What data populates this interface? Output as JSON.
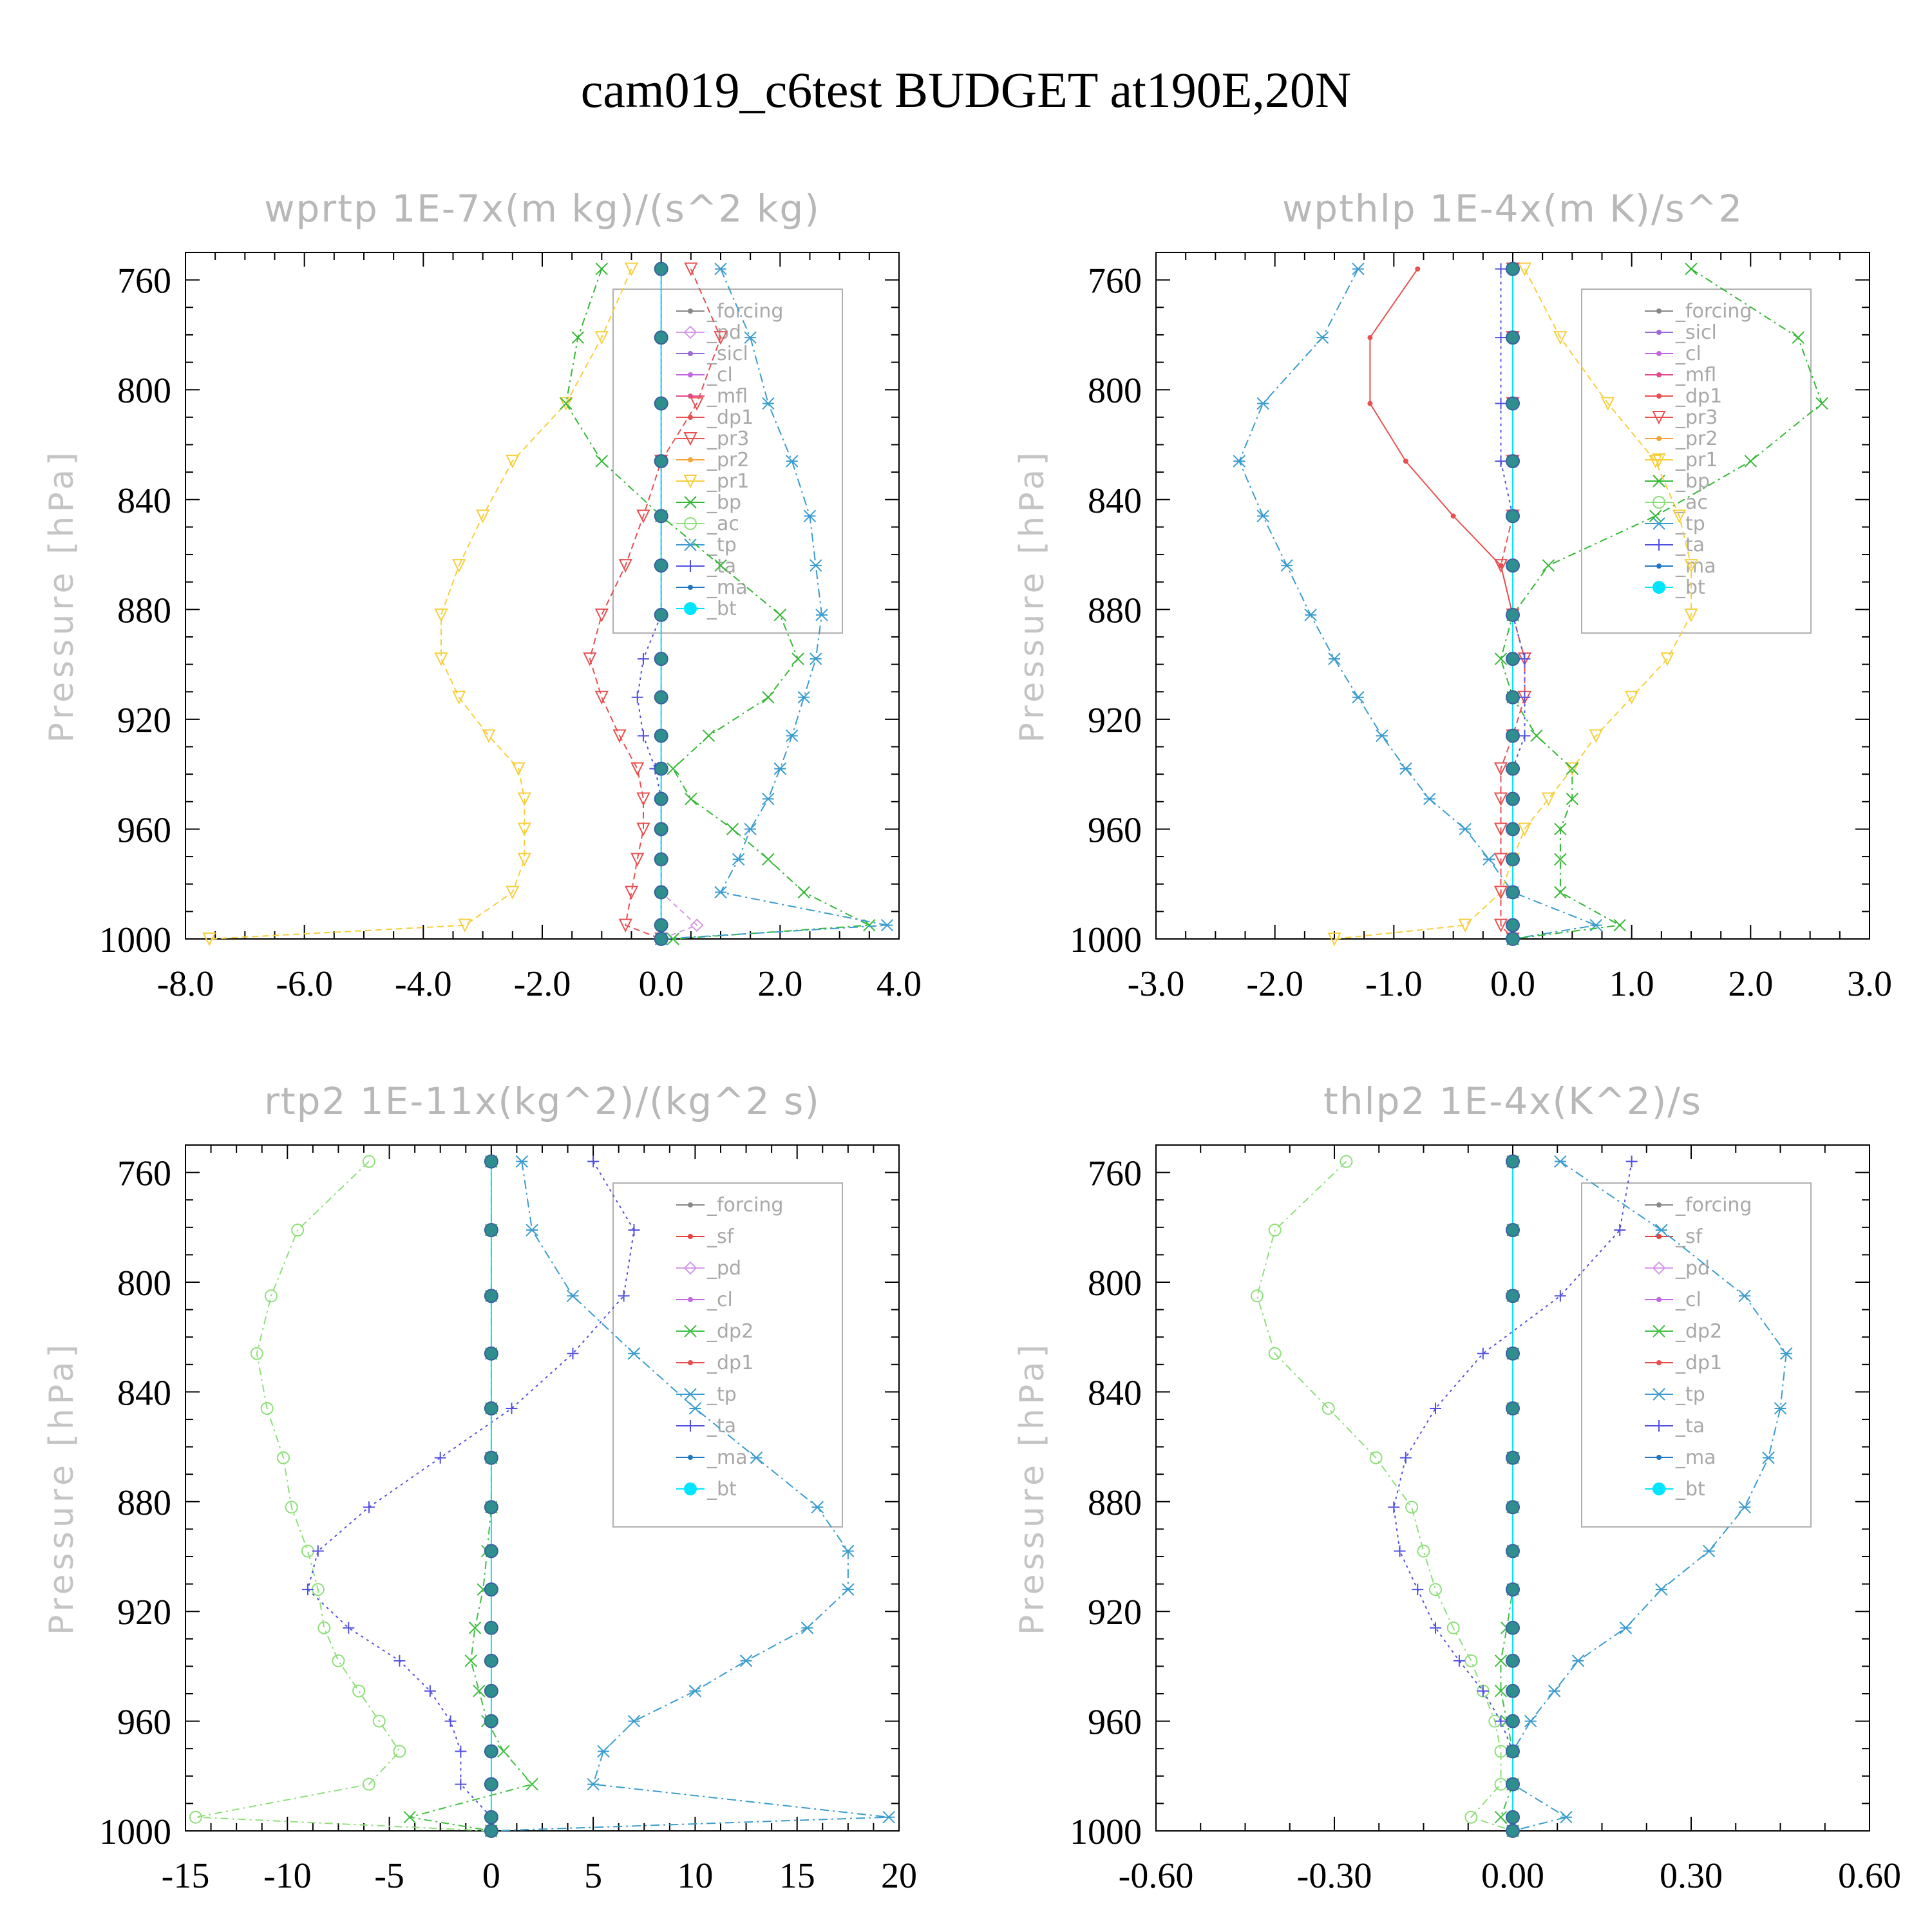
{
  "page_title": "cam019_c6test  BUDGET at190E,20N",
  "ylabel": "Pressure [hPa]",
  "colors": {
    "forcing": "#888888",
    "sf": "#e8403c",
    "pd": "#d59ae8",
    "sicl": "#9a6bd6",
    "cl": "#c068e0",
    "mfl": "#e04a8c",
    "dp1": "#e85050",
    "dp2": "#40c040",
    "pr3": "#e85050",
    "pr2": "#f5a53c",
    "pr1": "#f7cf3c",
    "bp": "#34b834",
    "ac": "#8ee07a",
    "tp": "#3a9ccf",
    "ta": "#5050e0",
    "ma": "#2077c0",
    "bt": "#00e5ff"
  },
  "chart_data": [
    {
      "type": "line",
      "title": "wprtp  1E-7x(m kg)/(s^2 kg)",
      "ylabel": "Pressure [hPa]",
      "xlim": [
        -8.0,
        4.0
      ],
      "ylim": [
        1000,
        750
      ],
      "y_reversed": true,
      "xticks": [
        "-8.0",
        "-6.0",
        "-4.0",
        "-2.0",
        "0.0",
        "2.0",
        "4.0"
      ],
      "xtick_values": [
        -8,
        -6,
        -4,
        -2,
        0,
        2,
        4
      ],
      "yticks": [
        "760",
        "800",
        "840",
        "880",
        "920",
        "960",
        "1000"
      ],
      "ytick_values": [
        760,
        800,
        840,
        880,
        920,
        960,
        1000
      ],
      "legend_position": "upper-right",
      "legend": [
        "_forcing",
        "_pd",
        "_sicl",
        "_cl",
        "_mfl",
        "_dp1",
        "_pr3",
        "_pr2",
        "_pr1",
        "_bp",
        "_ac",
        "_tp",
        "_ta",
        "_ma",
        "_bt"
      ],
      "levels": [
        756,
        781,
        805,
        826,
        846,
        864,
        882,
        898,
        912,
        926,
        938,
        949,
        960,
        971,
        983,
        995,
        1000
      ],
      "series": [
        {
          "name": "_pr1",
          "key": "pr1",
          "values": [
            -0.5,
            -1.0,
            -1.6,
            -2.5,
            -3.0,
            -3.4,
            -3.7,
            -3.7,
            -3.4,
            -2.9,
            -2.4,
            -2.3,
            -2.3,
            -2.3,
            -2.5,
            -3.3,
            -7.6
          ]
        },
        {
          "name": "_pr3",
          "key": "pr3",
          "values": [
            0.5,
            1.0,
            0.6,
            0.0,
            -0.3,
            -0.6,
            -1.0,
            -1.2,
            -1.0,
            -0.7,
            -0.4,
            -0.3,
            -0.3,
            -0.4,
            -0.5,
            -0.6,
            0.0
          ]
        },
        {
          "name": "_bp",
          "key": "bp",
          "values": [
            -1.0,
            -1.4,
            -1.6,
            -1.0,
            0.0,
            1.0,
            2.0,
            2.3,
            1.8,
            0.8,
            0.2,
            0.5,
            1.2,
            1.8,
            2.4,
            3.5,
            0.2
          ]
        },
        {
          "name": "_tp",
          "key": "tp",
          "values": [
            1.0,
            1.5,
            1.8,
            2.2,
            2.5,
            2.6,
            2.7,
            2.6,
            2.4,
            2.2,
            2.0,
            1.8,
            1.5,
            1.3,
            1.0,
            3.8,
            0.0
          ]
        },
        {
          "name": "_ta",
          "key": "ta",
          "values": [
            0.0,
            0.0,
            0.0,
            0.0,
            0.0,
            0.0,
            0.0,
            -0.3,
            -0.4,
            -0.3,
            -0.1,
            0.0,
            0.0,
            0.0,
            0.0,
            0.0,
            0.0
          ]
        },
        {
          "name": "_pd",
          "key": "pd",
          "values": [
            0.0,
            0.0,
            0.0,
            0.0,
            0.0,
            0.0,
            0.0,
            0.0,
            0.0,
            0.0,
            0.0,
            0.0,
            0.0,
            0.0,
            0.0,
            0.6,
            0.0
          ]
        },
        {
          "name": "_bt",
          "key": "bt",
          "values": [
            0.0,
            0.0,
            0.0,
            0.0,
            0.0,
            0.0,
            0.0,
            0.0,
            0.0,
            0.0,
            0.0,
            0.0,
            0.0,
            0.0,
            0.0,
            0.0,
            0.0
          ]
        }
      ]
    },
    {
      "type": "line",
      "title": "wpthlp  1E-4x(m K)/s^2",
      "ylabel": "Pressure [hPa]",
      "xlim": [
        -3.0,
        3.0
      ],
      "ylim": [
        1000,
        750
      ],
      "y_reversed": true,
      "xticks": [
        "-3.0",
        "-2.0",
        "-1.0",
        "0.0",
        "1.0",
        "2.0",
        "3.0"
      ],
      "xtick_values": [
        -3,
        -2,
        -1,
        0,
        1,
        2,
        3
      ],
      "yticks": [
        "760",
        "800",
        "840",
        "880",
        "920",
        "960",
        "1000"
      ],
      "ytick_values": [
        760,
        800,
        840,
        880,
        920,
        960,
        1000
      ],
      "legend_position": "upper-right",
      "legend": [
        "_forcing",
        "_sicl",
        "_cl",
        "_mfl",
        "_dp1",
        "_pr3",
        "_pr2",
        "_pr1",
        "_bp",
        "_ac",
        "_tp",
        "_ta",
        "_ma",
        "_bt"
      ],
      "levels": [
        756,
        781,
        805,
        826,
        846,
        864,
        882,
        898,
        912,
        926,
        938,
        949,
        960,
        971,
        983,
        995,
        1000
      ],
      "series": [
        {
          "name": "_tp",
          "key": "tp",
          "values": [
            -1.3,
            -1.6,
            -2.1,
            -2.3,
            -2.1,
            -1.9,
            -1.7,
            -1.5,
            -1.3,
            -1.1,
            -0.9,
            -0.7,
            -0.4,
            -0.2,
            0.0,
            0.7,
            0.0
          ]
        },
        {
          "name": "_dp1",
          "key": "dp1",
          "values": [
            -0.8,
            -1.2,
            -1.2,
            -0.9,
            -0.5,
            -0.1,
            0.0,
            0.0,
            0.0,
            0.0,
            0.0,
            0.0,
            0.0,
            0.0,
            0.0,
            0.0,
            0.0
          ]
        },
        {
          "name": "_pr1",
          "key": "pr1",
          "values": [
            0.1,
            0.4,
            0.8,
            1.2,
            1.4,
            1.5,
            1.5,
            1.3,
            1.0,
            0.7,
            0.5,
            0.3,
            0.1,
            0.0,
            -0.1,
            -0.4,
            -1.5
          ]
        },
        {
          "name": "_bp",
          "key": "bp",
          "values": [
            1.5,
            2.4,
            2.6,
            2.0,
            1.2,
            0.3,
            0.0,
            -0.1,
            0.0,
            0.2,
            0.5,
            0.5,
            0.4,
            0.4,
            0.4,
            0.9,
            0.0
          ]
        },
        {
          "name": "_pr3",
          "key": "pr3",
          "values": [
            0.0,
            0.0,
            0.0,
            0.0,
            0.0,
            -0.1,
            0.0,
            0.1,
            0.1,
            0.0,
            -0.1,
            -0.1,
            -0.1,
            -0.1,
            -0.1,
            -0.1,
            0.0
          ]
        },
        {
          "name": "_ta",
          "key": "ta",
          "values": [
            -0.1,
            -0.1,
            -0.1,
            -0.1,
            0.0,
            0.0,
            0.0,
            0.1,
            0.1,
            0.1,
            0.0,
            0.0,
            0.0,
            0.0,
            0.0,
            0.0,
            0.0
          ]
        },
        {
          "name": "_bt",
          "key": "bt",
          "values": [
            0.0,
            0.0,
            0.0,
            0.0,
            0.0,
            0.0,
            0.0,
            0.0,
            0.0,
            0.0,
            0.0,
            0.0,
            0.0,
            0.0,
            0.0,
            0.0,
            0.0
          ]
        }
      ]
    },
    {
      "type": "line",
      "title": "rtp2  1E-11x(kg^2)/(kg^2 s)",
      "ylabel": "Pressure [hPa]",
      "xlim": [
        -15,
        20
      ],
      "ylim": [
        1000,
        750
      ],
      "y_reversed": true,
      "xticks": [
        "-15",
        "-10",
        "-5",
        "0",
        "5",
        "10",
        "15",
        "20"
      ],
      "xtick_values": [
        -15,
        -10,
        -5,
        0,
        5,
        10,
        15,
        20
      ],
      "yticks": [
        "760",
        "800",
        "840",
        "880",
        "920",
        "960",
        "1000"
      ],
      "ytick_values": [
        760,
        800,
        840,
        880,
        920,
        960,
        1000
      ],
      "legend_position": "upper-right",
      "legend": [
        "_forcing",
        "_sf",
        "_pd",
        "_cl",
        "_dp2",
        "_dp1",
        "_tp",
        "_ta",
        "_ma",
        "_bt"
      ],
      "levels": [
        756,
        781,
        805,
        826,
        846,
        864,
        882,
        898,
        912,
        926,
        938,
        949,
        960,
        971,
        983,
        995,
        1000
      ],
      "series": [
        {
          "name": "_dp1",
          "key": "ac",
          "values": [
            -6.0,
            -9.5,
            -10.8,
            -11.5,
            -11.0,
            -10.2,
            -9.8,
            -9.0,
            -8.5,
            -8.2,
            -7.5,
            -6.5,
            -5.5,
            -4.5,
            -6.0,
            -14.5,
            0.0
          ]
        },
        {
          "name": "_tp",
          "key": "tp",
          "values": [
            1.5,
            2.0,
            4.0,
            7.0,
            10.0,
            13.0,
            16.0,
            17.5,
            17.5,
            15.5,
            12.5,
            10.0,
            7.0,
            5.5,
            5.0,
            19.5,
            0.0
          ]
        },
        {
          "name": "_ta",
          "key": "ta",
          "values": [
            5.0,
            7.0,
            6.5,
            4.0,
            1.0,
            -2.5,
            -6.0,
            -8.5,
            -9.0,
            -7.0,
            -4.5,
            -3.0,
            -2.0,
            -1.5,
            -1.5,
            0.0,
            0.0
          ]
        },
        {
          "name": "_dp2",
          "key": "dp2",
          "values": [
            0.0,
            0.0,
            0.0,
            0.0,
            0.0,
            0.0,
            0.0,
            -0.2,
            -0.4,
            -0.8,
            -1.0,
            -0.6,
            -0.2,
            0.6,
            2.0,
            -4.0,
            0.0
          ]
        },
        {
          "name": "_bt",
          "key": "bt",
          "values": [
            0.0,
            0.0,
            0.0,
            0.0,
            0.0,
            0.0,
            0.0,
            0.0,
            0.0,
            0.0,
            0.0,
            0.0,
            0.0,
            0.0,
            0.0,
            0.0,
            0.0
          ]
        }
      ]
    },
    {
      "type": "line",
      "title": "thlp2  1E-4x(K^2)/s",
      "ylabel": "Pressure [hPa]",
      "xlim": [
        -0.6,
        0.6
      ],
      "ylim": [
        1000,
        750
      ],
      "y_reversed": true,
      "xticks": [
        "-0.60",
        "-0.30",
        "0.00",
        "0.30",
        "0.60"
      ],
      "xtick_values": [
        -0.6,
        -0.3,
        0.0,
        0.3,
        0.6
      ],
      "yticks": [
        "760",
        "800",
        "840",
        "880",
        "920",
        "960",
        "1000"
      ],
      "ytick_values": [
        760,
        800,
        840,
        880,
        920,
        960,
        1000
      ],
      "legend_position": "upper-right",
      "legend": [
        "_forcing",
        "_sf",
        "_pd",
        "_cl",
        "_dp2",
        "_dp1",
        "_tp",
        "_ta",
        "_ma",
        "_bt"
      ],
      "levels": [
        756,
        781,
        805,
        826,
        846,
        864,
        882,
        898,
        912,
        926,
        938,
        949,
        960,
        971,
        983,
        995,
        1000
      ],
      "series": [
        {
          "name": "_dp1",
          "key": "ac",
          "values": [
            -0.28,
            -0.4,
            -0.43,
            -0.4,
            -0.31,
            -0.23,
            -0.17,
            -0.15,
            -0.13,
            -0.1,
            -0.07,
            -0.05,
            -0.03,
            -0.02,
            -0.02,
            -0.07,
            0.0
          ]
        },
        {
          "name": "_tp",
          "key": "tp",
          "values": [
            0.08,
            0.25,
            0.39,
            0.46,
            0.45,
            0.43,
            0.39,
            0.33,
            0.25,
            0.19,
            0.11,
            0.07,
            0.03,
            0.0,
            0.0,
            0.09,
            0.0
          ]
        },
        {
          "name": "_ta",
          "key": "ta",
          "values": [
            0.2,
            0.18,
            0.08,
            -0.05,
            -0.13,
            -0.18,
            -0.2,
            -0.19,
            -0.16,
            -0.13,
            -0.09,
            -0.05,
            -0.02,
            0.0,
            0.0,
            0.0,
            0.0
          ]
        },
        {
          "name": "_dp2",
          "key": "dp2",
          "values": [
            0.0,
            0.0,
            0.0,
            0.0,
            0.0,
            0.0,
            0.0,
            0.0,
            0.0,
            -0.01,
            -0.02,
            -0.02,
            -0.01,
            0.0,
            0.0,
            -0.02,
            0.0
          ]
        },
        {
          "name": "_bt",
          "key": "bt",
          "values": [
            0.0,
            0.0,
            0.0,
            0.0,
            0.0,
            0.0,
            0.0,
            0.0,
            0.0,
            0.0,
            0.0,
            0.0,
            0.0,
            0.0,
            0.0,
            0.0,
            0.0
          ]
        }
      ]
    }
  ]
}
